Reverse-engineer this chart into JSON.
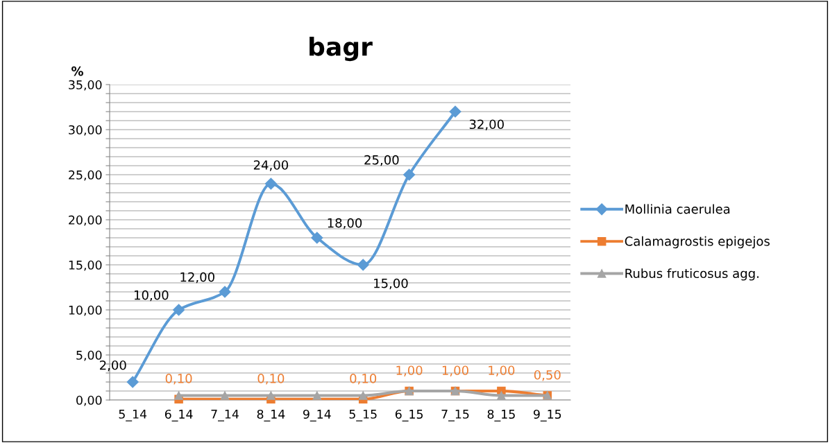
{
  "chart_data": {
    "type": "line",
    "title": "bagr",
    "ylabel": "%",
    "categories": [
      "5_14",
      "6_14",
      "7_14",
      "8_14",
      "9_14",
      "5_15",
      "6_15",
      "7_15",
      "8_15",
      "9_15"
    ],
    "series": [
      {
        "name": "Mollinia caerulea",
        "color": "#5b9bd5",
        "marker": "diamond",
        "values": [
          2,
          10,
          12,
          24,
          18,
          15,
          25,
          32,
          null,
          null
        ],
        "value_labels": [
          "2,00",
          "10,00",
          "12,00",
          "24,00",
          "18,00",
          "15,00",
          "25,00",
          "32,00",
          null,
          null
        ]
      },
      {
        "name": "Calamagrostis epigejos",
        "color": "#ed7d31",
        "marker": "square",
        "values": [
          null,
          0.1,
          null,
          0.1,
          null,
          0.1,
          1,
          1,
          1,
          0.5
        ],
        "value_labels": [
          null,
          "0,10",
          null,
          "0,10",
          null,
          "0,10",
          "1,00",
          "1,00",
          "1,00",
          "0,50"
        ]
      },
      {
        "name": "Rubus fruticosus agg.",
        "color": "#a5a5a5",
        "marker": "triangle",
        "values": [
          null,
          0.5,
          0.5,
          0.5,
          0.5,
          0.5,
          1,
          1,
          0.5,
          0.5
        ]
      }
    ],
    "ylim": [
      0,
      35
    ],
    "yticks": [
      {
        "value": 0,
        "label": "0,00"
      },
      {
        "value": 1,
        "label": null
      },
      {
        "value": 2,
        "label": null
      },
      {
        "value": 3,
        "label": null
      },
      {
        "value": 4,
        "label": null
      },
      {
        "value": 5,
        "label": "5,00"
      },
      {
        "value": 6,
        "label": null
      },
      {
        "value": 7,
        "label": null
      },
      {
        "value": 8,
        "label": null
      },
      {
        "value": 9,
        "label": null
      },
      {
        "value": 10,
        "label": "10,00"
      },
      {
        "value": 11,
        "label": null
      },
      {
        "value": 12,
        "label": null
      },
      {
        "value": 13,
        "label": null
      },
      {
        "value": 14,
        "label": null
      },
      {
        "value": 15,
        "label": "15,00"
      },
      {
        "value": 16,
        "label": null
      },
      {
        "value": 17,
        "label": null
      },
      {
        "value": 18,
        "label": null
      },
      {
        "value": 19,
        "label": null
      },
      {
        "value": 20,
        "label": "20,00"
      },
      {
        "value": 21,
        "label": null
      },
      {
        "value": 22,
        "label": null
      },
      {
        "value": 23,
        "label": null
      },
      {
        "value": 24,
        "label": null
      },
      {
        "value": 25,
        "label": "25,00"
      },
      {
        "value": 26,
        "label": null
      },
      {
        "value": 27,
        "label": null
      },
      {
        "value": 28,
        "label": null
      },
      {
        "value": 29,
        "label": null
      },
      {
        "value": 30,
        "label": "30,00"
      },
      {
        "value": 31,
        "label": null
      },
      {
        "value": 32,
        "label": null
      },
      {
        "value": 33,
        "label": null
      },
      {
        "value": 34,
        "label": null
      },
      {
        "value": 35,
        "label": "35,00"
      }
    ],
    "grid": "y",
    "legend": "right",
    "line_style": "solid"
  }
}
